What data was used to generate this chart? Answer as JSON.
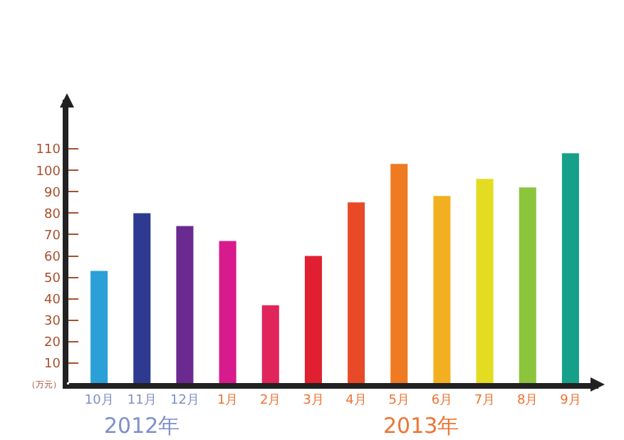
{
  "chart_data": {
    "type": "bar",
    "categories": [
      "10月",
      "11月",
      "12月",
      "1月",
      "2月",
      "3月",
      "4月",
      "5月",
      "6月",
      "7月",
      "8月",
      "9月"
    ],
    "values": [
      53,
      80,
      74,
      67,
      37,
      60,
      85,
      103,
      88,
      96,
      92,
      108
    ],
    "colors": [
      "#2a9fd8",
      "#2e3a8f",
      "#6a2a8f",
      "#d81b8c",
      "#e0245c",
      "#e02030",
      "#e84a28",
      "#ee7a22",
      "#f2b020",
      "#e4dc20",
      "#8cc43c",
      "#16a08a"
    ],
    "ylabel": "（万元）",
    "ylim": [
      0,
      133
    ],
    "yticks": [
      10,
      20,
      30,
      40,
      50,
      60,
      70,
      80,
      90,
      100,
      110
    ],
    "annotations": [
      "2012年",
      "2013年"
    ]
  }
}
